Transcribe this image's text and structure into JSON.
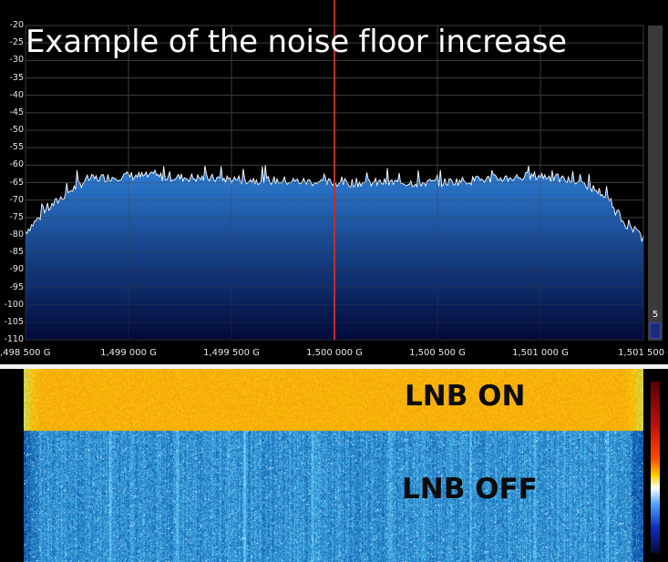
{
  "spectrum": {
    "title": "Example of the noise floor increase",
    "y_axis_labels": [
      "-20",
      "-25",
      "-30",
      "-35",
      "-40",
      "-45",
      "-50",
      "-55",
      "-60",
      "-65",
      "-70",
      "-75",
      "-80",
      "-85",
      "-90",
      "-95",
      "-100",
      "-105",
      "-110"
    ],
    "x_axis_labels": [
      ",498 500 G",
      "1,499 000 G",
      "1,499 500 G",
      "1,500 000 G",
      "1,500 500 G",
      "1,501 000 G",
      "1,501 500 G"
    ],
    "level_value": "5",
    "colors": {
      "background": "#000000",
      "grid": "#3c3c3c",
      "fill_top": "#2f7fd6",
      "fill_bottom": "#020a3a",
      "trace": "#ffffff",
      "center_marker": "#c0302a"
    }
  },
  "waterfall": {
    "label_on": "LNB ON",
    "label_off": "LNB OFF",
    "colors": {
      "on_hot": "#f07a10",
      "on_warm": "#f7d21a",
      "off_dark": "#0c2a8a",
      "off_light": "#5aa0ea"
    }
  },
  "chart_data": {
    "type": "area",
    "title": "Example of the noise floor increase",
    "xlabel": "",
    "ylabel": "",
    "ylim": [
      -110,
      -20
    ],
    "xlim_ghz": [
      1.4985,
      1.5015
    ],
    "grid": true,
    "center_marker_ghz": 1.5,
    "series": [
      {
        "x_ghz": [
          1.4985,
          1.4986,
          1.4987,
          1.4988,
          1.499,
          1.4995,
          1.5,
          1.5005,
          1.501,
          1.5012,
          1.5013,
          1.5014,
          1.5015
        ],
        "y": [
          -79,
          -73,
          -68,
          -64,
          -63,
          -64,
          -65,
          -65,
          -63,
          -65,
          -68,
          -76,
          -81
        ]
      }
    ]
  }
}
